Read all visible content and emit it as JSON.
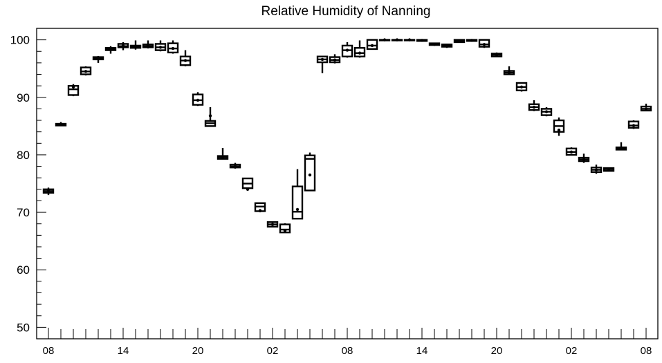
{
  "chart_data": {
    "type": "box",
    "title": "Relative Humidity of Nanning",
    "xlabel": "",
    "ylabel": "",
    "ylim": [
      48,
      102
    ],
    "y_ticks": [
      50,
      60,
      70,
      80,
      90,
      100
    ],
    "x_tick_labels": [
      "08",
      "14",
      "20",
      "02",
      "08",
      "14",
      "20",
      "02",
      "08"
    ],
    "x_tick_hours": [
      0,
      6,
      12,
      18,
      24,
      30,
      36,
      42,
      48
    ],
    "grid": false,
    "legend": "none",
    "boxes": [
      {
        "hour": 0,
        "min": 73.0,
        "q1": 73.4,
        "median": 73.7,
        "q3": 74.0,
        "max": 74.3,
        "mean": 73.7
      },
      {
        "hour": 1,
        "min": 85.0,
        "q1": 85.1,
        "median": 85.3,
        "q3": 85.4,
        "max": 85.7,
        "mean": 85.3
      },
      {
        "hour": 2,
        "min": 90.2,
        "q1": 90.4,
        "median": 91.4,
        "q3": 92.0,
        "max": 92.3,
        "mean": 91.8
      },
      {
        "hour": 3,
        "min": 93.8,
        "q1": 94.0,
        "median": 94.5,
        "q3": 95.2,
        "max": 95.4,
        "mean": 94.5
      },
      {
        "hour": 4,
        "min": 96.0,
        "q1": 96.6,
        "median": 96.8,
        "q3": 97.0,
        "max": 97.2,
        "mean": 96.8
      },
      {
        "hour": 5,
        "min": 97.6,
        "q1": 98.2,
        "median": 98.4,
        "q3": 98.6,
        "max": 98.9,
        "mean": 98.4
      },
      {
        "hour": 6,
        "min": 98.2,
        "q1": 98.7,
        "median": 98.9,
        "q3": 99.3,
        "max": 99.6,
        "mean": 99.0
      },
      {
        "hour": 7,
        "min": 98.3,
        "q1": 98.6,
        "median": 98.8,
        "q3": 99.0,
        "max": 99.9,
        "mean": 98.8
      },
      {
        "hour": 8,
        "min": 98.5,
        "q1": 98.7,
        "median": 98.9,
        "q3": 99.2,
        "max": 99.9,
        "mean": 99.0
      },
      {
        "hour": 9,
        "min": 98.0,
        "q1": 98.2,
        "median": 98.7,
        "q3": 99.3,
        "max": 99.9,
        "mean": 98.7
      },
      {
        "hour": 10,
        "min": 97.6,
        "q1": 97.8,
        "median": 98.5,
        "q3": 99.4,
        "max": 99.9,
        "mean": 98.5
      },
      {
        "hour": 11,
        "min": 95.4,
        "q1": 95.6,
        "median": 96.4,
        "q3": 97.1,
        "max": 98.2,
        "mean": 96.4
      },
      {
        "hour": 12,
        "min": 88.5,
        "q1": 88.7,
        "median": 89.5,
        "q3": 90.5,
        "max": 90.9,
        "mean": 89.5
      },
      {
        "hour": 13,
        "min": 85.0,
        "q1": 85.0,
        "median": 85.5,
        "q3": 85.9,
        "max": 88.3,
        "mean": 86.8
      },
      {
        "hour": 14,
        "min": 79.2,
        "q1": 79.3,
        "median": 79.6,
        "q3": 79.8,
        "max": 81.2,
        "mean": 79.6
      },
      {
        "hour": 15,
        "min": 77.6,
        "q1": 77.8,
        "median": 78.0,
        "q3": 78.3,
        "max": 78.6,
        "mean": 78.0
      },
      {
        "hour": 16,
        "min": 74.0,
        "q1": 74.2,
        "median": 75.0,
        "q3": 75.9,
        "max": 76.0,
        "mean": 74.0
      },
      {
        "hour": 17,
        "min": 70.0,
        "q1": 70.2,
        "median": 71.0,
        "q3": 71.6,
        "max": 71.7,
        "mean": 70.3
      },
      {
        "hour": 18,
        "min": 67.5,
        "q1": 67.5,
        "median": 67.9,
        "q3": 68.3,
        "max": 68.3,
        "mean": 67.9
      },
      {
        "hour": 19,
        "min": 66.4,
        "q1": 66.5,
        "median": 67.0,
        "q3": 67.9,
        "max": 68.1,
        "mean": 66.8
      },
      {
        "hour": 20,
        "min": 68.8,
        "q1": 68.9,
        "median": 70.1,
        "q3": 74.5,
        "max": 77.5,
        "mean": 70.5
      },
      {
        "hour": 21,
        "min": 73.7,
        "q1": 73.8,
        "median": 79.3,
        "q3": 79.9,
        "max": 80.4,
        "mean": 76.5
      },
      {
        "hour": 22,
        "min": 94.2,
        "q1": 96.1,
        "median": 96.6,
        "q3": 97.1,
        "max": 97.2,
        "mean": 96.6
      },
      {
        "hour": 23,
        "min": 95.9,
        "q1": 96.1,
        "median": 96.5,
        "q3": 97.0,
        "max": 97.5,
        "mean": 96.5
      },
      {
        "hour": 24,
        "min": 96.9,
        "q1": 97.1,
        "median": 98.2,
        "q3": 99.0,
        "max": 99.6,
        "mean": 98.2
      },
      {
        "hour": 25,
        "min": 96.9,
        "q1": 97.1,
        "median": 97.7,
        "q3": 98.6,
        "max": 99.9,
        "mean": 97.7
      },
      {
        "hour": 26,
        "min": 98.3,
        "q1": 98.4,
        "median": 99.0,
        "q3": 100.0,
        "max": 100.0,
        "mean": 99.0
      },
      {
        "hour": 27,
        "min": 99.8,
        "q1": 99.9,
        "median": 100.0,
        "q3": 100.0,
        "max": 100.0,
        "mean": 100.0
      },
      {
        "hour": 28,
        "min": 99.8,
        "q1": 99.9,
        "median": 100.0,
        "q3": 100.0,
        "max": 100.0,
        "mean": 100.0
      },
      {
        "hour": 29,
        "min": 99.8,
        "q1": 99.9,
        "median": 100.0,
        "q3": 100.0,
        "max": 100.0,
        "mean": 100.0
      },
      {
        "hour": 30,
        "min": 99.7,
        "q1": 99.8,
        "median": 99.9,
        "q3": 100.0,
        "max": 100.0,
        "mean": 99.9
      },
      {
        "hour": 31,
        "min": 99.0,
        "q1": 99.1,
        "median": 99.2,
        "q3": 99.4,
        "max": 99.5,
        "mean": 99.2
      },
      {
        "hour": 32,
        "min": 98.6,
        "q1": 98.8,
        "median": 99.0,
        "q3": 99.2,
        "max": 99.3,
        "mean": 99.0
      },
      {
        "hour": 33,
        "min": 99.5,
        "q1": 99.6,
        "median": 99.8,
        "q3": 100.0,
        "max": 100.0,
        "mean": 99.8
      },
      {
        "hour": 34,
        "min": 99.7,
        "q1": 99.8,
        "median": 99.9,
        "q3": 100.0,
        "max": 100.0,
        "mean": 99.9
      },
      {
        "hour": 35,
        "min": 98.6,
        "q1": 98.8,
        "median": 99.2,
        "q3": 100.0,
        "max": 100.0,
        "mean": 99.2
      },
      {
        "hour": 36,
        "min": 97.0,
        "q1": 97.1,
        "median": 97.4,
        "q3": 97.6,
        "max": 97.8,
        "mean": 97.4
      },
      {
        "hour": 37,
        "min": 93.9,
        "q1": 94.0,
        "median": 94.3,
        "q3": 94.6,
        "max": 95.4,
        "mean": 94.3
      },
      {
        "hour": 38,
        "min": 91.0,
        "q1": 91.2,
        "median": 91.8,
        "q3": 92.5,
        "max": 92.6,
        "mean": 91.8
      },
      {
        "hour": 39,
        "min": 87.6,
        "q1": 87.8,
        "median": 88.3,
        "q3": 88.8,
        "max": 89.5,
        "mean": 88.3
      },
      {
        "hour": 40,
        "min": 86.7,
        "q1": 86.9,
        "median": 87.5,
        "q3": 88.0,
        "max": 88.3,
        "mean": 87.5
      },
      {
        "hour": 41,
        "min": 83.3,
        "q1": 84.0,
        "median": 85.0,
        "q3": 86.0,
        "max": 86.5,
        "mean": 84.3
      },
      {
        "hour": 42,
        "min": 80.0,
        "q1": 80.0,
        "median": 80.5,
        "q3": 81.1,
        "max": 81.3,
        "mean": 80.5
      },
      {
        "hour": 43,
        "min": 78.6,
        "q1": 78.9,
        "median": 79.2,
        "q3": 79.5,
        "max": 80.2,
        "mean": 79.2
      },
      {
        "hour": 44,
        "min": 76.7,
        "q1": 77.0,
        "median": 77.4,
        "q3": 77.8,
        "max": 78.3,
        "mean": 77.4
      },
      {
        "hour": 45,
        "min": 77.1,
        "q1": 77.2,
        "median": 77.5,
        "q3": 77.7,
        "max": 77.8,
        "mean": 77.5
      },
      {
        "hour": 46,
        "min": 80.8,
        "q1": 80.9,
        "median": 81.1,
        "q3": 81.3,
        "max": 82.2,
        "mean": 81.1
      },
      {
        "hour": 47,
        "min": 84.5,
        "q1": 84.7,
        "median": 85.1,
        "q3": 85.8,
        "max": 86.0,
        "mean": 85.1
      },
      {
        "hour": 48,
        "min": 87.6,
        "q1": 87.7,
        "median": 88.0,
        "q3": 88.4,
        "max": 88.9,
        "mean": 88.0
      }
    ]
  }
}
